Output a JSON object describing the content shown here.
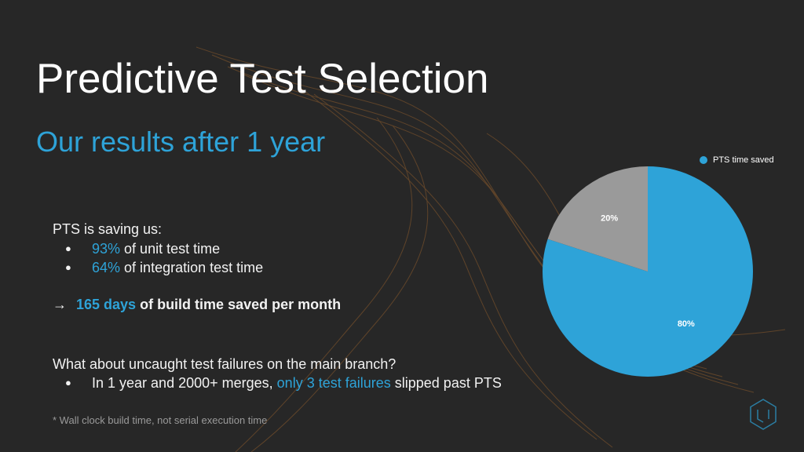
{
  "title": "Predictive Test Selection",
  "subtitle": "Our results after 1 year",
  "body": {
    "intro": "PTS is saving us:",
    "bullets": [
      {
        "highlight": "93%",
        "text": "of unit test time"
      },
      {
        "highlight": "64%",
        "text": "of integration test time"
      }
    ],
    "summary": {
      "arrow": "→",
      "highlight": "165 days",
      "text": "of build time saved per month"
    },
    "question": "What about uncaught test failures on the main branch?",
    "answer": {
      "before": "In 1 year and 2000+ merges,",
      "highlight": "only 3 test failures",
      "after": "slipped past PTS"
    },
    "footnote": "* Wall clock build time, not serial execution time"
  },
  "chart_data": {
    "type": "pie",
    "categories": [
      "PTS time saved",
      null
    ],
    "values": [
      80,
      20
    ],
    "value_labels": [
      "80%",
      "20%"
    ],
    "colors": [
      "#2ea3d8",
      "#9a9a9a"
    ],
    "legend": "top-right"
  }
}
